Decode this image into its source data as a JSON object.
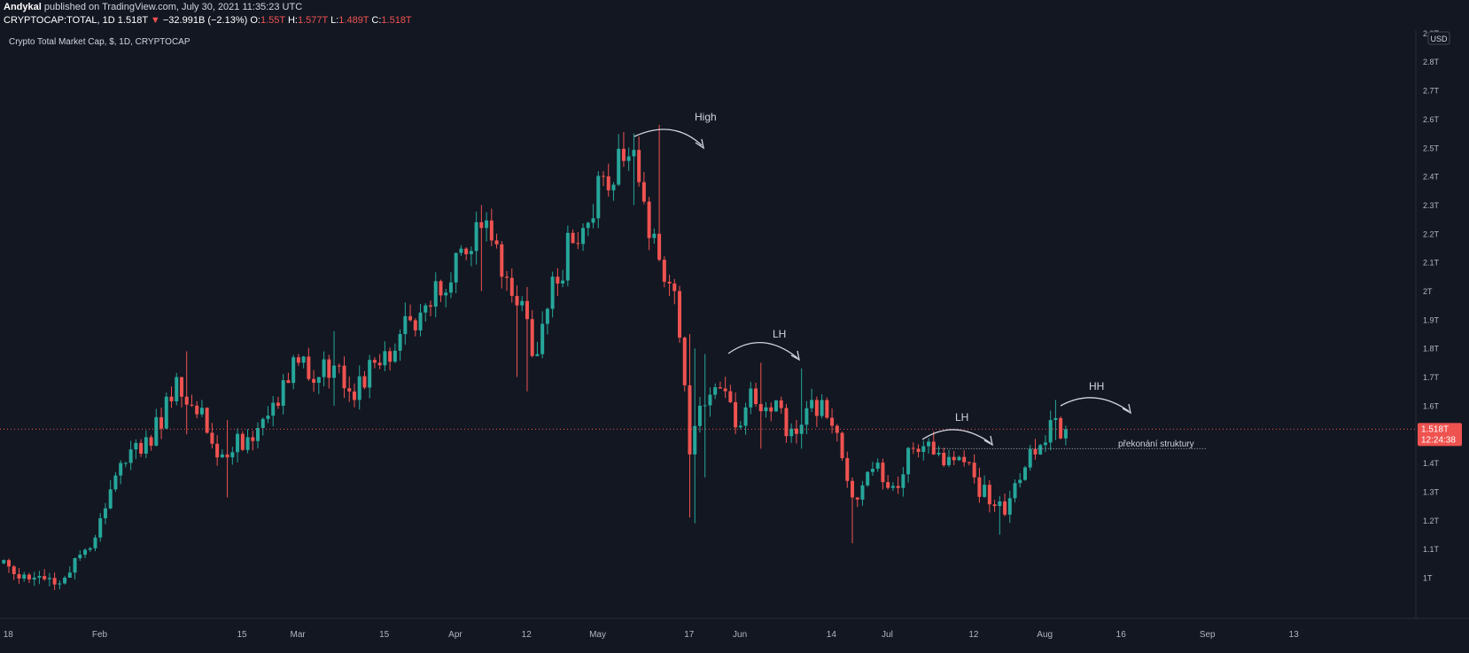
{
  "header": {
    "author": "Andykal",
    "published_text": "published on TradingView.com, July 30, 2021 11:35:23 UTC",
    "symbol": "CRYPTOCAP:TOTAL, 1D",
    "last": "1.518T",
    "change": "−32.991B (−2.13%)",
    "o_label": "O:",
    "o_value": "1.55T",
    "h_label": "H:",
    "h_value": "1.577T",
    "l_label": "L:",
    "l_value": "1.489T",
    "c_label": "C:",
    "c_value": "1.518T"
  },
  "chart_title": "Crypto Total Market Cap, $, 1D, CRYPTOCAP",
  "currency": "USD",
  "price_tag": {
    "value": "1.518T",
    "countdown": "12:24:38"
  },
  "colors": {
    "up": "#26a69a",
    "down": "#ef5350",
    "background": "#131722",
    "text": "#d1d4dc",
    "axis_text": "#b2b5be"
  },
  "chart_data": {
    "type": "candlestick",
    "y_ticks": [
      "2.9T",
      "2.8T",
      "2.7T",
      "2.6T",
      "2.5T",
      "2.4T",
      "2.3T",
      "2.2T",
      "2.1T",
      "2T",
      "1.9T",
      "1.8T",
      "1.7T",
      "1.6T",
      "1.5T",
      "1.4T",
      "1.3T",
      "1.2T",
      "1.1T",
      "1T"
    ],
    "x_ticks": [
      "18",
      "Feb",
      "15",
      "Mar",
      "15",
      "Apr",
      "12",
      "May",
      "17",
      "Jun",
      "14",
      "Jul",
      "12",
      "Aug",
      "16",
      "Sep",
      "13"
    ],
    "annotations": [
      "High",
      "LH",
      "LH",
      "HH",
      "překonání struktury"
    ],
    "last_price": 1.518,
    "reference_level": 1.45,
    "anchors": [
      [
        -2,
        1.05
      ],
      [
        5,
        1.0
      ],
      [
        10,
        0.98
      ],
      [
        14,
        1.08
      ],
      [
        17,
        1.14
      ],
      [
        22,
        1.4
      ],
      [
        25,
        1.47
      ],
      [
        30,
        1.52
      ],
      [
        33,
        1.7
      ],
      [
        37,
        1.57
      ],
      [
        42,
        1.43
      ],
      [
        47,
        1.49
      ],
      [
        53,
        1.6
      ],
      [
        57,
        1.75
      ],
      [
        60,
        1.68
      ],
      [
        64,
        1.74
      ],
      [
        68,
        1.62
      ],
      [
        72,
        1.75
      ],
      [
        77,
        1.85
      ],
      [
        82,
        1.95
      ],
      [
        87,
        2.03
      ],
      [
        93,
        2.22
      ],
      [
        97,
        2.05
      ],
      [
        100,
        1.95
      ],
      [
        104,
        1.78
      ],
      [
        107,
        2.05
      ],
      [
        113,
        2.22
      ],
      [
        117,
        2.4
      ],
      [
        122,
        2.47
      ],
      [
        124,
        2.38
      ],
      [
        127,
        2.2
      ],
      [
        131,
        2.0
      ],
      [
        134,
        1.43
      ],
      [
        136,
        1.6
      ],
      [
        140,
        1.66
      ],
      [
        144,
        1.53
      ],
      [
        146,
        1.66
      ],
      [
        150,
        1.58
      ],
      [
        154,
        1.52
      ],
      [
        158,
        1.62
      ],
      [
        162,
        1.53
      ],
      [
        166,
        1.28
      ],
      [
        170,
        1.38
      ],
      [
        174,
        1.32
      ],
      [
        178,
        1.45
      ],
      [
        182,
        1.43
      ],
      [
        186,
        1.41
      ],
      [
        190,
        1.35
      ],
      [
        194,
        1.25
      ],
      [
        196,
        1.22
      ],
      [
        198,
        1.33
      ],
      [
        202,
        1.43
      ],
      [
        205,
        1.55
      ],
      [
        208,
        1.518
      ]
    ],
    "wicks": [
      [
        128,
        2.58,
        2.36
      ],
      [
        123,
        2.55,
        2.3
      ],
      [
        137,
        1.78,
        1.35
      ],
      [
        134,
        1.85,
        1.21
      ],
      [
        135,
        1.8,
        1.19
      ],
      [
        166,
        1.35,
        1.12
      ],
      [
        195,
        1.28,
        1.15
      ],
      [
        156,
        1.73,
        1.45
      ],
      [
        148,
        1.75,
        1.45
      ],
      [
        93,
        2.3,
        2.0
      ],
      [
        100,
        2.0,
        1.7
      ],
      [
        102,
        2.0,
        1.65
      ],
      [
        35,
        1.79,
        1.5
      ],
      [
        43,
        1.55,
        1.28
      ],
      [
        64,
        1.86,
        1.6
      ],
      [
        206,
        1.62,
        1.48
      ]
    ]
  }
}
